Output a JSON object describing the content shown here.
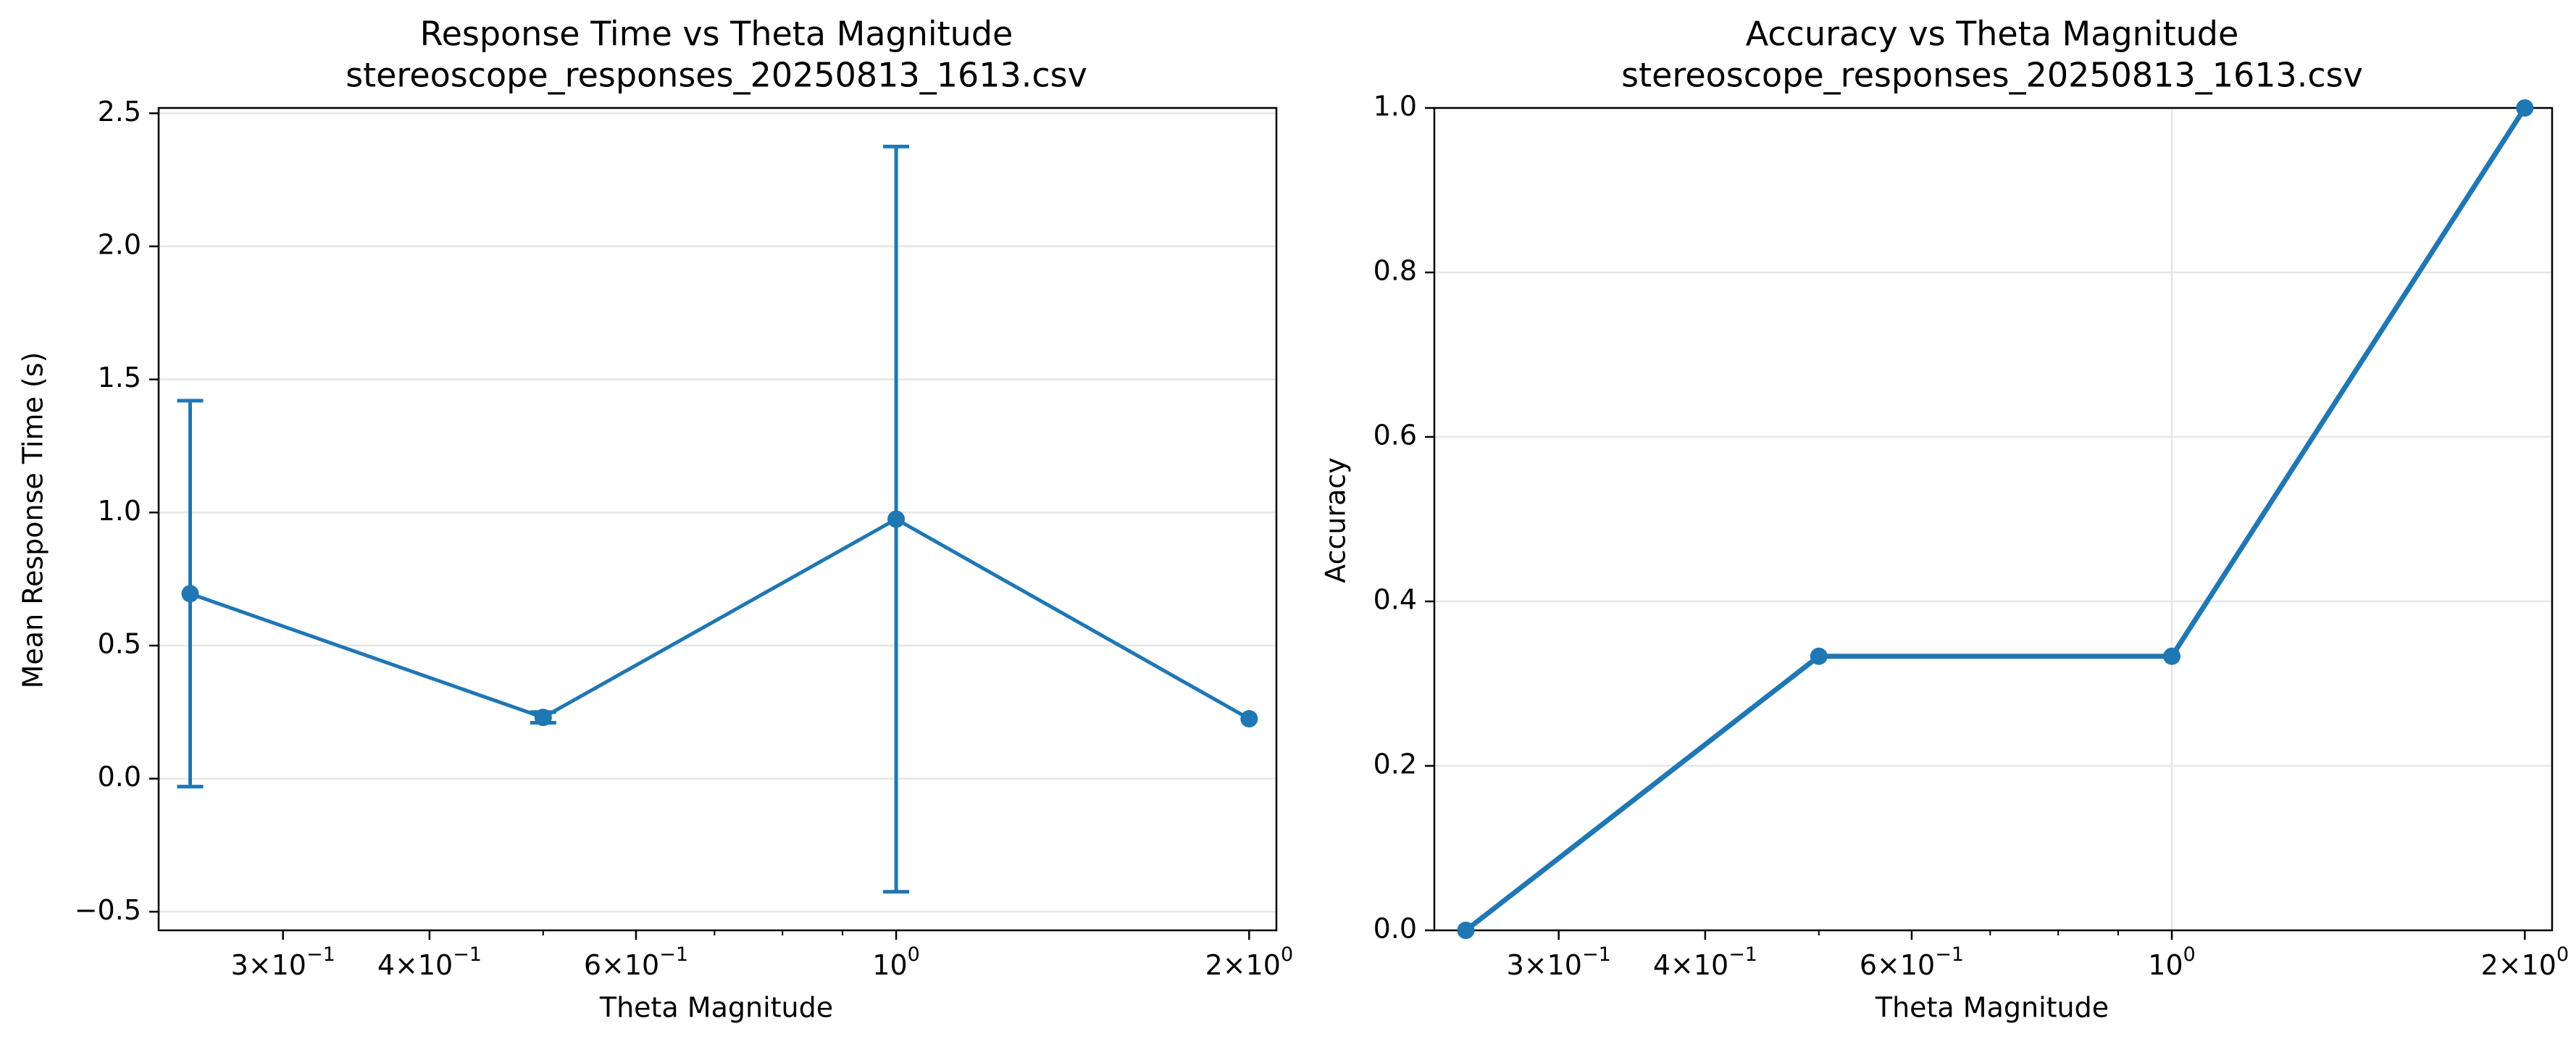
{
  "figure": {
    "background": "#ffffff",
    "series_color": "#1f77b4",
    "grid_color": "#e6e6e6"
  },
  "chart_data": [
    {
      "type": "line",
      "title": "Response Time vs Theta Magnitude",
      "subtitle": "stereoscope_responses_20250813_1613.csv",
      "xlabel": "Theta Magnitude",
      "ylabel": "Mean Response Time (s)",
      "x_scale": "log",
      "xlim": [
        0.235,
        2.11
      ],
      "ylim": [
        -0.57,
        2.52
      ],
      "grid": {
        "x": false,
        "y": true
      },
      "error_bars": true,
      "x_ticks": [
        {
          "value": 0.3,
          "base": "3",
          "exp": "−1"
        },
        {
          "value": 0.4,
          "base": "4",
          "exp": "−1"
        },
        {
          "value": 0.6,
          "base": "6",
          "exp": "−1"
        },
        {
          "value": 1.0,
          "base": "",
          "exp": "0"
        },
        {
          "value": 2.0,
          "base": "2",
          "exp": "0"
        }
      ],
      "y_ticks": [
        {
          "value": -0.5,
          "label": "−0.5"
        },
        {
          "value": 0.0,
          "label": "0.0"
        },
        {
          "value": 0.5,
          "label": "0.5"
        },
        {
          "value": 1.0,
          "label": "1.0"
        },
        {
          "value": 1.5,
          "label": "1.5"
        },
        {
          "value": 2.0,
          "label": "2.0"
        },
        {
          "value": 2.5,
          "label": "2.5"
        }
      ],
      "series": [
        {
          "x": [
            0.25,
            0.5,
            1.0,
            2.0
          ],
          "y": [
            0.695,
            0.23,
            0.975,
            0.225
          ],
          "yerr": [
            0.725,
            0.02,
            1.4,
            0
          ]
        }
      ]
    },
    {
      "type": "line",
      "title": "Accuracy vs Theta Magnitude",
      "subtitle": "stereoscope_responses_20250813_1613.csv",
      "xlabel": "Theta Magnitude",
      "ylabel": "Accuracy",
      "x_scale": "log",
      "xlim": [
        0.235,
        2.11
      ],
      "ylim": [
        0,
        1
      ],
      "grid": {
        "x": true,
        "y": true
      },
      "error_bars": false,
      "x_ticks": [
        {
          "value": 0.3,
          "base": "3",
          "exp": "−1"
        },
        {
          "value": 0.4,
          "base": "4",
          "exp": "−1"
        },
        {
          "value": 0.6,
          "base": "6",
          "exp": "−1"
        },
        {
          "value": 1.0,
          "base": "",
          "exp": "0"
        },
        {
          "value": 2.0,
          "base": "2",
          "exp": "0"
        }
      ],
      "y_ticks": [
        {
          "value": 0.0,
          "label": "0.0"
        },
        {
          "value": 0.2,
          "label": "0.2"
        },
        {
          "value": 0.4,
          "label": "0.4"
        },
        {
          "value": 0.6,
          "label": "0.6"
        },
        {
          "value": 0.8,
          "label": "0.8"
        },
        {
          "value": 1.0,
          "label": "1.0"
        }
      ],
      "series": [
        {
          "x": [
            0.25,
            0.5,
            1.0,
            2.0
          ],
          "y": [
            0.0,
            0.3333,
            0.3333,
            1.0
          ]
        }
      ]
    }
  ]
}
